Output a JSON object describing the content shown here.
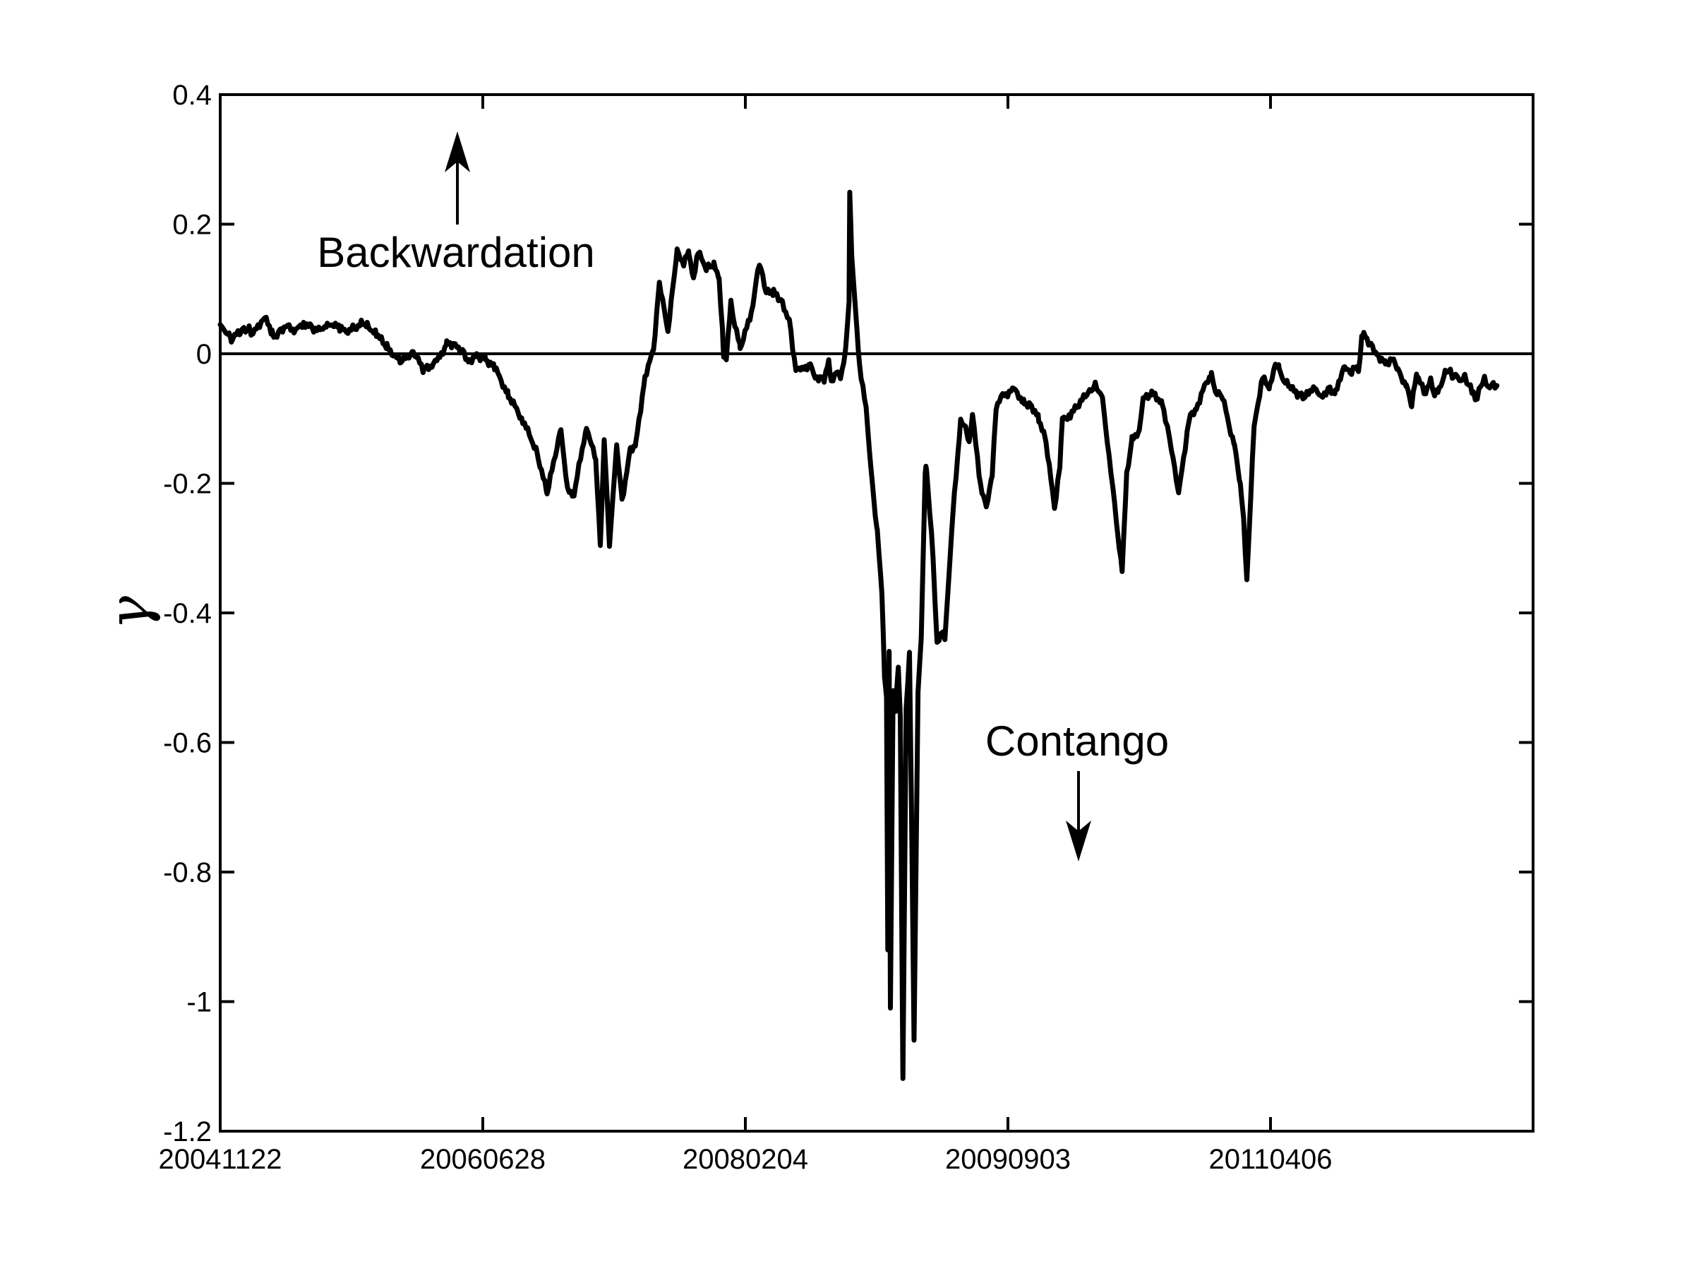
{
  "figure": {
    "background_color": "#ffffff",
    "axis_color": "#000000",
    "series_color": "#000000",
    "annotations": {
      "backwardation_label": "Backwardation",
      "contango_label": "Contango"
    }
  },
  "chart_data": {
    "type": "line",
    "title": "",
    "xlabel": "",
    "ylabel": "γ",
    "legend": "none",
    "grid": false,
    "x_axis_units": "trading days since first tick date",
    "x_tick_labels": [
      "20041122",
      "20060628",
      "20080204",
      "20090903",
      "20110406"
    ],
    "x_ticks_days": [
      0,
      400,
      800,
      1200,
      1600
    ],
    "xlim_days": [
      0,
      2000
    ],
    "y_tick_labels": [
      "0.4",
      "0.2",
      "0",
      "-0.2",
      "-0.4",
      "-0.6",
      "-0.8",
      "-1",
      "-1.2"
    ],
    "y_ticks": [
      0.4,
      0.2,
      0,
      -0.2,
      -0.4,
      -0.6,
      -0.8,
      -1,
      -1.2
    ],
    "ylim": [
      -1.2,
      0.4
    ],
    "zero_line": true,
    "render_hints": {
      "jitter_amplitude": 0.006,
      "jitter_step_days": 2.5,
      "series_stroke_px": 7
    },
    "series": [
      {
        "name": "gamma",
        "points": [
          [
            0,
            0.045
          ],
          [
            6,
            0.038
          ],
          [
            17,
            0.022
          ],
          [
            30,
            0.034
          ],
          [
            36,
            0.039
          ],
          [
            44,
            0.038
          ],
          [
            50,
            0.03
          ],
          [
            65,
            0.054
          ],
          [
            70,
            0.052
          ],
          [
            79,
            0.033
          ],
          [
            84,
            0.027
          ],
          [
            95,
            0.039
          ],
          [
            105,
            0.042
          ],
          [
            115,
            0.035
          ],
          [
            127,
            0.048
          ],
          [
            140,
            0.04
          ],
          [
            154,
            0.035
          ],
          [
            163,
            0.042
          ],
          [
            173,
            0.047
          ],
          [
            182,
            0.038
          ],
          [
            192,
            0.035
          ],
          [
            205,
            0.04
          ],
          [
            215,
            0.046
          ],
          [
            224,
            0.044
          ],
          [
            238,
            0.03
          ],
          [
            254,
            0.01
          ],
          [
            275,
            -0.013
          ],
          [
            294,
            0.004
          ],
          [
            310,
            -0.026
          ],
          [
            332,
            -0.01
          ],
          [
            345,
            0.016
          ],
          [
            353,
            0.015
          ],
          [
            369,
            0.005
          ],
          [
            378,
            -0.011
          ],
          [
            391,
            -0.003
          ],
          [
            404,
            -0.008
          ],
          [
            418,
            -0.021
          ],
          [
            439,
            -0.064
          ],
          [
            461,
            -0.103
          ],
          [
            482,
            -0.15
          ],
          [
            498,
            -0.216
          ],
          [
            519,
            -0.114
          ],
          [
            529,
            -0.212
          ],
          [
            539,
            -0.217
          ],
          [
            558,
            -0.111
          ],
          [
            572,
            -0.165
          ],
          [
            579,
            -0.296
          ],
          [
            585,
            -0.133
          ],
          [
            593,
            -0.296
          ],
          [
            604,
            -0.14
          ],
          [
            612,
            -0.227
          ],
          [
            625,
            -0.147
          ],
          [
            633,
            -0.14
          ],
          [
            647,
            -0.035
          ],
          [
            660,
            0.005
          ],
          [
            669,
            0.11
          ],
          [
            682,
            0.034
          ],
          [
            696,
            0.158
          ],
          [
            706,
            0.14
          ],
          [
            714,
            0.157
          ],
          [
            721,
            0.117
          ],
          [
            728,
            0.156
          ],
          [
            741,
            0.132
          ],
          [
            752,
            0.136
          ],
          [
            760,
            0.117
          ],
          [
            765,
            0.034
          ],
          [
            767,
            -0.004
          ],
          [
            771,
            -0.006
          ],
          [
            778,
            0.077
          ],
          [
            784,
            0.045
          ],
          [
            792,
            0.009
          ],
          [
            809,
            0.061
          ],
          [
            819,
            0.13
          ],
          [
            824,
            0.132
          ],
          [
            832,
            0.094
          ],
          [
            843,
            0.095
          ],
          [
            854,
            0.083
          ],
          [
            867,
            0.052
          ],
          [
            872,
            0.01
          ],
          [
            877,
            -0.022
          ],
          [
            884,
            -0.027
          ],
          [
            899,
            -0.015
          ],
          [
            904,
            -0.035
          ],
          [
            920,
            -0.038
          ],
          [
            927,
            -0.011
          ],
          [
            931,
            -0.042
          ],
          [
            942,
            -0.027
          ],
          [
            945,
            -0.042
          ],
          [
            953,
            0.009
          ],
          [
            958,
            0.08
          ],
          [
            959,
            0.255
          ],
          [
            962,
            0.147
          ],
          [
            970,
            0.038
          ],
          [
            974,
            -0.016
          ],
          [
            984,
            -0.087
          ],
          [
            993,
            -0.196
          ],
          [
            1001,
            -0.276
          ],
          [
            1008,
            -0.37
          ],
          [
            1012,
            -0.5
          ],
          [
            1015,
            -0.53
          ],
          [
            1017,
            -0.92
          ],
          [
            1019,
            -0.46
          ],
          [
            1021,
            -1.01
          ],
          [
            1025,
            -0.52
          ],
          [
            1029,
            -0.55
          ],
          [
            1033,
            -0.48
          ],
          [
            1036,
            -0.56
          ],
          [
            1040,
            -1.12
          ],
          [
            1045,
            -0.55
          ],
          [
            1050,
            -0.46
          ],
          [
            1053,
            -0.7
          ],
          [
            1057,
            -1.06
          ],
          [
            1063,
            -0.52
          ],
          [
            1068,
            -0.438
          ],
          [
            1074,
            -0.182
          ],
          [
            1076,
            -0.177
          ],
          [
            1086,
            -0.316
          ],
          [
            1092,
            -0.45
          ],
          [
            1098,
            -0.43
          ],
          [
            1104,
            -0.44
          ],
          [
            1116,
            -0.25
          ],
          [
            1128,
            -0.1
          ],
          [
            1137,
            -0.12
          ],
          [
            1141,
            -0.135
          ],
          [
            1146,
            -0.095
          ],
          [
            1158,
            -0.2
          ],
          [
            1167,
            -0.236
          ],
          [
            1176,
            -0.19
          ],
          [
            1182,
            -0.08
          ],
          [
            1192,
            -0.065
          ],
          [
            1209,
            -0.055
          ],
          [
            1225,
            -0.075
          ],
          [
            1236,
            -0.08
          ],
          [
            1247,
            -0.1
          ],
          [
            1258,
            -0.136
          ],
          [
            1271,
            -0.238
          ],
          [
            1279,
            -0.176
          ],
          [
            1283,
            -0.1
          ],
          [
            1295,
            -0.095
          ],
          [
            1308,
            -0.078
          ],
          [
            1322,
            -0.06
          ],
          [
            1333,
            -0.048
          ],
          [
            1344,
            -0.065
          ],
          [
            1354,
            -0.16
          ],
          [
            1360,
            -0.205
          ],
          [
            1367,
            -0.28
          ],
          [
            1374,
            -0.336
          ],
          [
            1381,
            -0.184
          ],
          [
            1389,
            -0.133
          ],
          [
            1400,
            -0.118
          ],
          [
            1406,
            -0.071
          ],
          [
            1419,
            -0.06
          ],
          [
            1435,
            -0.075
          ],
          [
            1443,
            -0.114
          ],
          [
            1449,
            -0.147
          ],
          [
            1460,
            -0.217
          ],
          [
            1473,
            -0.122
          ],
          [
            1478,
            -0.095
          ],
          [
            1487,
            -0.084
          ],
          [
            1497,
            -0.057
          ],
          [
            1510,
            -0.029
          ],
          [
            1516,
            -0.06
          ],
          [
            1527,
            -0.067
          ],
          [
            1537,
            -0.111
          ],
          [
            1545,
            -0.14
          ],
          [
            1554,
            -0.2
          ],
          [
            1559,
            -0.252
          ],
          [
            1564,
            -0.353
          ],
          [
            1570,
            -0.216
          ],
          [
            1575,
            -0.111
          ],
          [
            1581,
            -0.078
          ],
          [
            1588,
            -0.038
          ],
          [
            1599,
            -0.053
          ],
          [
            1605,
            -0.022
          ],
          [
            1613,
            -0.02
          ],
          [
            1620,
            -0.042
          ],
          [
            1631,
            -0.053
          ],
          [
            1642,
            -0.064
          ],
          [
            1653,
            -0.067
          ],
          [
            1667,
            -0.048
          ],
          [
            1677,
            -0.07
          ],
          [
            1688,
            -0.053
          ],
          [
            1699,
            -0.06
          ],
          [
            1704,
            -0.042
          ],
          [
            1713,
            -0.02
          ],
          [
            1721,
            -0.031
          ],
          [
            1728,
            -0.017
          ],
          [
            1734,
            -0.029
          ],
          [
            1739,
            0.027
          ],
          [
            1742,
            0.03
          ],
          [
            1753,
            0.014
          ],
          [
            1762,
            0.0
          ],
          [
            1767,
            -0.006
          ],
          [
            1775,
            -0.015
          ],
          [
            1785,
            -0.008
          ],
          [
            1794,
            -0.024
          ],
          [
            1799,
            -0.035
          ],
          [
            1807,
            -0.049
          ],
          [
            1815,
            -0.078
          ],
          [
            1823,
            -0.031
          ],
          [
            1828,
            -0.042
          ],
          [
            1834,
            -0.06
          ],
          [
            1839,
            -0.055
          ],
          [
            1844,
            -0.042
          ],
          [
            1850,
            -0.064
          ],
          [
            1857,
            -0.057
          ],
          [
            1866,
            -0.027
          ],
          [
            1871,
            -0.024
          ],
          [
            1877,
            -0.035
          ],
          [
            1882,
            -0.031
          ],
          [
            1888,
            -0.04
          ],
          [
            1896,
            -0.037
          ],
          [
            1902,
            -0.048
          ],
          [
            1909,
            -0.064
          ],
          [
            1915,
            -0.07
          ],
          [
            1920,
            -0.049
          ],
          [
            1926,
            -0.04
          ],
          [
            1931,
            -0.053
          ],
          [
            1937,
            -0.048
          ],
          [
            1945,
            -0.049
          ]
        ]
      }
    ]
  }
}
